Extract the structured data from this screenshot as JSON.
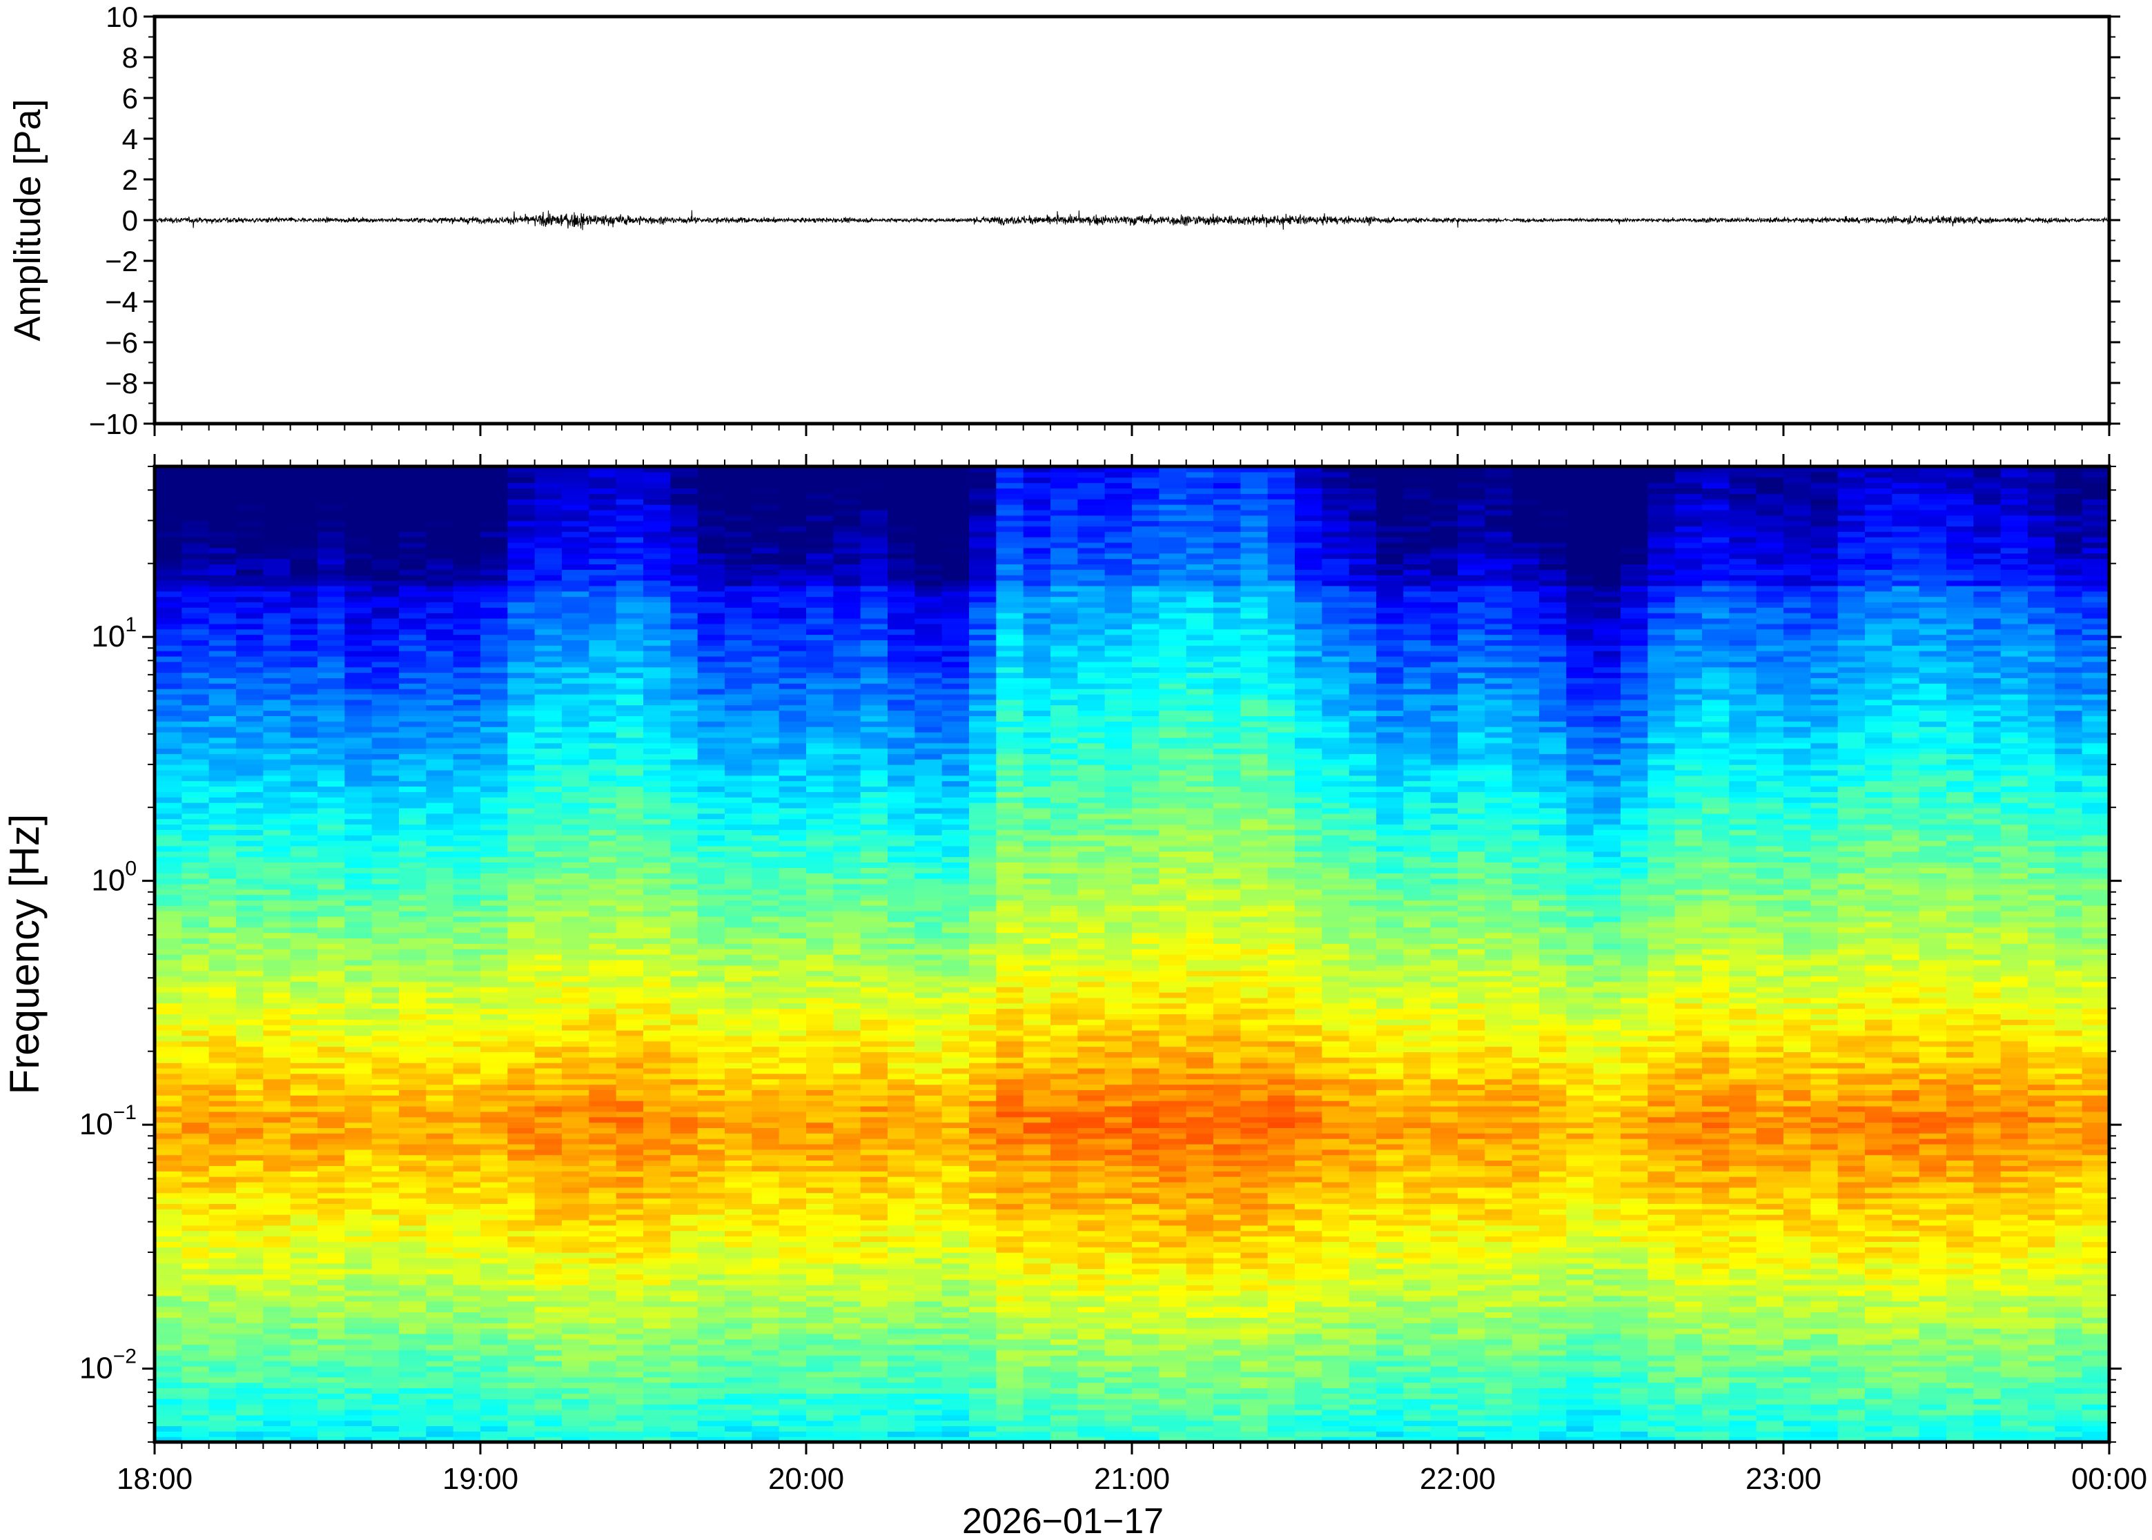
{
  "chart_data": [
    {
      "type": "line",
      "panel": "waveform",
      "ylabel": "Amplitude [Pa]",
      "ylim": [
        -10,
        10
      ],
      "yticks": [
        10,
        8,
        6,
        4,
        2,
        0,
        -2,
        -4,
        -6,
        -8,
        -10
      ],
      "ytick_labels": [
        "10",
        "8",
        "6",
        "4",
        "2",
        "0",
        "−2",
        "−4",
        "−6",
        "−8",
        "−10"
      ],
      "xlim_hours": [
        18,
        24
      ],
      "series": [
        {
          "line_color": "#000000",
          "envelope_hours": [
            18.0,
            18.25,
            18.5,
            18.75,
            18.95,
            19.1,
            19.28,
            19.35,
            19.45,
            19.6,
            19.8,
            20.0,
            20.2,
            20.4,
            20.5,
            20.6,
            20.8,
            21.0,
            21.1,
            21.3,
            21.5,
            21.6,
            21.8,
            22.0,
            22.2,
            22.4,
            22.6,
            22.8,
            23.0,
            23.2,
            23.3,
            23.4,
            23.5,
            23.7,
            23.9,
            24.0
          ],
          "envelope_amplitude_pa": [
            0.3,
            0.3,
            0.25,
            0.25,
            0.35,
            0.4,
            0.9,
            0.7,
            0.55,
            0.35,
            0.3,
            0.25,
            0.25,
            0.2,
            0.3,
            0.45,
            0.45,
            0.55,
            0.6,
            0.55,
            0.55,
            0.45,
            0.3,
            0.25,
            0.2,
            0.2,
            0.2,
            0.25,
            0.3,
            0.3,
            0.35,
            0.45,
            0.45,
            0.3,
            0.25,
            0.25
          ]
        }
      ]
    },
    {
      "type": "heatmap",
      "panel": "spectrogram",
      "ylabel": "Frequency [Hz]",
      "yscale": "log",
      "ylim": [
        0.005,
        50
      ],
      "yticks": [
        10,
        1,
        0.1,
        0.01
      ],
      "ytick_labels": [
        {
          "base": "10",
          "exp": "1"
        },
        {
          "base": "10",
          "exp": "0"
        },
        {
          "base": "10",
          "exp": "−1"
        },
        {
          "base": "10",
          "exp": "−2"
        }
      ],
      "xlabel": "2026−01−17",
      "xlim_hours": [
        18,
        24
      ],
      "xticks": [
        "18:00",
        "19:00",
        "20:00",
        "21:00",
        "22:00",
        "23:00",
        "00:00"
      ],
      "colormap": "jet",
      "columns": 72,
      "activity_profile_hours": [
        18.0,
        18.5,
        19.0,
        19.2,
        19.5,
        19.7,
        20.0,
        20.3,
        20.45,
        20.6,
        21.0,
        21.4,
        21.7,
        22.0,
        22.3,
        22.45,
        22.6,
        23.0,
        23.4,
        23.8,
        24.0
      ],
      "activity_profile_level": [
        0.45,
        0.35,
        0.35,
        0.7,
        0.75,
        0.4,
        0.45,
        0.4,
        0.2,
        0.75,
        0.85,
        0.85,
        0.45,
        0.45,
        0.45,
        0.15,
        0.55,
        0.6,
        0.65,
        0.55,
        0.5
      ]
    }
  ]
}
